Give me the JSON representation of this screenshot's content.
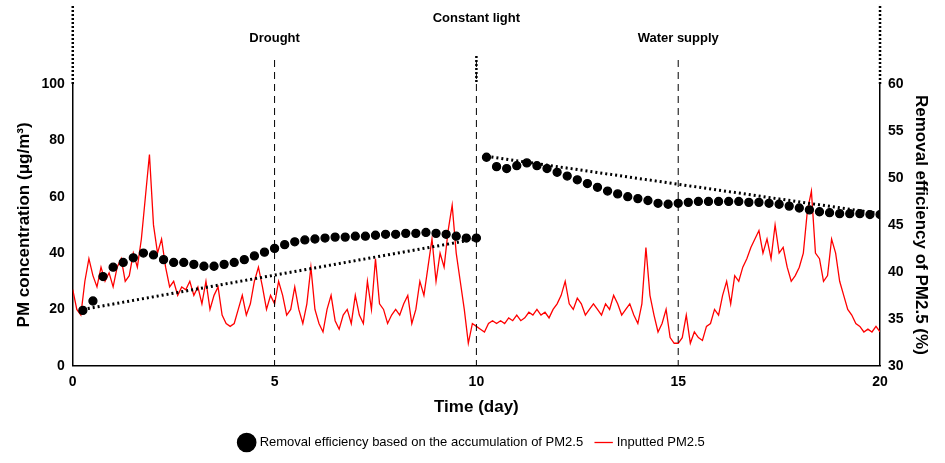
{
  "chart_data": {
    "type": "line",
    "x_label": "Time (day)",
    "y_label": "PM concentration (μg/m³)",
    "y2_label": "Removal efficiency of PM2.5 (%)",
    "xlim": [
      0,
      20
    ],
    "xticks": [
      0,
      5,
      10,
      15,
      20
    ],
    "ylim": [
      0,
      100
    ],
    "yticks": [
      0,
      20,
      40,
      60,
      80,
      100
    ],
    "y2lim": [
      30,
      60
    ],
    "y2ticks": [
      30,
      35,
      40,
      45,
      50,
      55,
      60
    ],
    "grid": false,
    "legend": "bottom",
    "annotations": [
      {
        "text": "Constant light",
        "x": 10
      },
      {
        "text": "Drought",
        "x": 5
      },
      {
        "text": "Water supply",
        "x": 15
      }
    ],
    "vlines": [
      {
        "x": 0,
        "line_style": "dotted"
      },
      {
        "x": 10,
        "line_style": "dotted"
      },
      {
        "x": 20,
        "line_style": "dotted"
      },
      {
        "x": 5,
        "line_style": "dashed"
      },
      {
        "x": 10,
        "line_style": "dashed"
      },
      {
        "x": 15,
        "line_style": "dashed"
      }
    ],
    "series": [
      {
        "name": "Inputted PM2.5",
        "type": "line",
        "color": "#ff0000",
        "line_style": "solid",
        "x": [
          0,
          0.1,
          0.2,
          0.3,
          0.4,
          0.5,
          0.6,
          0.7,
          0.8,
          0.9,
          1,
          1.1,
          1.2,
          1.3,
          1.4,
          1.5,
          1.6,
          1.7,
          1.8,
          1.9,
          2,
          2.1,
          2.2,
          2.3,
          2.4,
          2.5,
          2.6,
          2.7,
          2.8,
          2.9,
          3,
          3.1,
          3.2,
          3.3,
          3.4,
          3.5,
          3.6,
          3.7,
          3.8,
          3.9,
          4,
          4.1,
          4.2,
          4.3,
          4.4,
          4.5,
          4.6,
          4.7,
          4.8,
          4.9,
          5,
          5.1,
          5.2,
          5.3,
          5.4,
          5.5,
          5.6,
          5.7,
          5.8,
          5.9,
          6,
          6.1,
          6.2,
          6.3,
          6.4,
          6.5,
          6.6,
          6.7,
          6.8,
          6.9,
          7,
          7.1,
          7.2,
          7.3,
          7.4,
          7.5,
          7.6,
          7.7,
          7.8,
          7.9,
          8,
          8.1,
          8.2,
          8.3,
          8.4,
          8.5,
          8.6,
          8.7,
          8.8,
          8.9,
          9,
          9.1,
          9.2,
          9.3,
          9.4,
          9.5,
          9.6,
          9.7,
          9.8,
          9.9,
          10,
          10.1,
          10.2,
          10.3,
          10.4,
          10.5,
          10.6,
          10.7,
          10.8,
          10.9,
          11,
          11.1,
          11.2,
          11.3,
          11.4,
          11.5,
          11.6,
          11.7,
          11.8,
          11.9,
          12,
          12.1,
          12.2,
          12.3,
          12.4,
          12.5,
          12.6,
          12.7,
          12.8,
          12.9,
          13,
          13.1,
          13.2,
          13.3,
          13.4,
          13.5,
          13.6,
          13.7,
          13.8,
          13.9,
          14,
          14.1,
          14.2,
          14.3,
          14.4,
          14.5,
          14.6,
          14.7,
          14.8,
          14.9,
          15,
          15.1,
          15.2,
          15.3,
          15.4,
          15.5,
          15.6,
          15.7,
          15.8,
          15.9,
          16,
          16.1,
          16.2,
          16.3,
          16.4,
          16.5,
          16.6,
          16.7,
          16.8,
          16.9,
          17,
          17.1,
          17.2,
          17.3,
          17.4,
          17.5,
          17.6,
          17.7,
          17.8,
          17.9,
          18,
          18.1,
          18.2,
          18.3,
          18.4,
          18.5,
          18.6,
          18.7,
          18.8,
          18.9,
          19,
          19.1,
          19.2,
          19.3,
          19.4,
          19.5,
          19.6,
          19.7,
          19.8,
          19.9,
          20
        ],
        "values": [
          27,
          20,
          18,
          30,
          38,
          32,
          28,
          35,
          30,
          33,
          28,
          35,
          38,
          30,
          32,
          40,
          35,
          45,
          60,
          75,
          50,
          40,
          45,
          35,
          28,
          30,
          25,
          28,
          27,
          30,
          25,
          28,
          22,
          30,
          20,
          25,
          28,
          18,
          15,
          14,
          15,
          20,
          25,
          18,
          22,
          30,
          35,
          28,
          20,
          25,
          22,
          30,
          25,
          18,
          20,
          28,
          20,
          15,
          22,
          35,
          20,
          15,
          12,
          20,
          25,
          16,
          13,
          18,
          20,
          15,
          25,
          18,
          15,
          30,
          20,
          38,
          22,
          20,
          15,
          18,
          20,
          18,
          22,
          25,
          15,
          20,
          30,
          25,
          35,
          45,
          30,
          40,
          35,
          48,
          57,
          40,
          30,
          20,
          8,
          15,
          14,
          13,
          12,
          15,
          16,
          15,
          16,
          15,
          17,
          16,
          18,
          16,
          17,
          19,
          18,
          20,
          18,
          19,
          17,
          20,
          22,
          25,
          30,
          22,
          20,
          24,
          22,
          18,
          20,
          22,
          20,
          18,
          22,
          20,
          25,
          22,
          18,
          20,
          22,
          18,
          15,
          22,
          42,
          25,
          18,
          12,
          15,
          20,
          10,
          8,
          8,
          10,
          18,
          8,
          12,
          10,
          9,
          14,
          15,
          20,
          18,
          25,
          30,
          22,
          32,
          30,
          35,
          38,
          42,
          45,
          48,
          40,
          45,
          38,
          50,
          40,
          42,
          35,
          30,
          32,
          35,
          40,
          55,
          62,
          40,
          38,
          30,
          32,
          45,
          40,
          30,
          25,
          20,
          18,
          15,
          14,
          12,
          13,
          12,
          14,
          12
        ]
      },
      {
        "name": "Removal efficiency based on the accumulation of PM2.5",
        "type": "scatter",
        "color": "#000000",
        "marker": "circle",
        "axis": "y2",
        "x": [
          0.25,
          0.5,
          0.75,
          1,
          1.25,
          1.5,
          1.75,
          2,
          2.25,
          2.5,
          2.75,
          3,
          3.25,
          3.5,
          3.75,
          4,
          4.25,
          4.5,
          4.75,
          5,
          5.25,
          5.5,
          5.75,
          6,
          6.25,
          6.5,
          6.75,
          7,
          7.25,
          7.5,
          7.75,
          8,
          8.25,
          8.5,
          8.75,
          9,
          9.25,
          9.5,
          9.75,
          10,
          10.25,
          10.5,
          10.75,
          11,
          11.25,
          11.5,
          11.75,
          12,
          12.25,
          12.5,
          12.75,
          13,
          13.25,
          13.5,
          13.75,
          14,
          14.25,
          14.5,
          14.75,
          15,
          15.25,
          15.5,
          15.75,
          16,
          16.25,
          16.5,
          16.75,
          17,
          17.25,
          17.5,
          17.75,
          18,
          18.25,
          18.5,
          18.75,
          19,
          19.25,
          19.5,
          19.75,
          20
        ],
        "values": [
          35.9,
          36.9,
          39.5,
          40.5,
          41,
          41.5,
          42,
          41.8,
          41.3,
          41,
          41,
          40.8,
          40.6,
          40.6,
          40.8,
          41,
          41.3,
          41.7,
          42.1,
          42.5,
          42.9,
          43.2,
          43.4,
          43.5,
          43.6,
          43.7,
          43.7,
          43.8,
          43.8,
          43.9,
          44,
          44,
          44.1,
          44.1,
          44.2,
          44.1,
          44,
          43.8,
          43.6,
          43.6,
          52.2,
          51.2,
          51,
          51.3,
          51.6,
          51.3,
          51,
          50.6,
          50.2,
          49.8,
          49.4,
          49,
          48.6,
          48.3,
          48,
          47.8,
          47.6,
          47.3,
          47.2,
          47.3,
          47.4,
          47.5,
          47.5,
          47.5,
          47.5,
          47.5,
          47.4,
          47.4,
          47.3,
          47.2,
          47,
          46.8,
          46.6,
          46.4,
          46.3,
          46.2,
          46.2,
          46.2,
          46.1,
          46.1
        ]
      },
      {
        "type": "line",
        "color": "#000000",
        "line_style": "dotted",
        "axis": "y2",
        "x": [
          0.25,
          10
        ],
        "values": [
          36,
          43.5
        ]
      },
      {
        "type": "line",
        "color": "#000000",
        "line_style": "dotted",
        "axis": "y2",
        "x": [
          10.25,
          20
        ],
        "values": [
          52.3,
          46.2
        ]
      }
    ]
  }
}
